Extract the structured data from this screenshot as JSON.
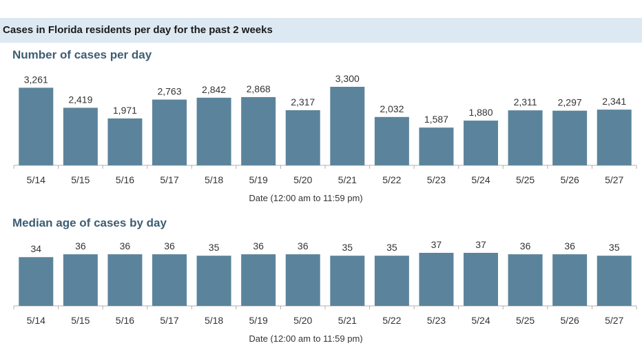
{
  "header": {
    "title": "Cases in Florida residents per day for the past 2 weeks"
  },
  "colors": {
    "bar": "#5b849c",
    "header_band": "#dde9f2",
    "section_title": "#3e5d73",
    "axis": "#b0b0b0",
    "text": "#333333"
  },
  "chart_data": [
    {
      "type": "bar",
      "title": "Number of cases per day",
      "xlabel": "Date (12:00 am to 11:59 pm)",
      "ylabel": "",
      "categories": [
        "5/14",
        "5/15",
        "5/16",
        "5/17",
        "5/18",
        "5/19",
        "5/20",
        "5/21",
        "5/22",
        "5/23",
        "5/24",
        "5/25",
        "5/26",
        "5/27"
      ],
      "values": [
        3261,
        2419,
        1971,
        2763,
        2842,
        2868,
        2317,
        3300,
        2032,
        1587,
        1880,
        2311,
        2297,
        2341
      ],
      "value_labels": [
        "3,261",
        "2,419",
        "1,971",
        "2,763",
        "2,842",
        "2,868",
        "2,317",
        "3,300",
        "2,032",
        "1,587",
        "1,880",
        "2,311",
        "2,297",
        "2,341"
      ],
      "ylim": [
        0,
        3300
      ],
      "grid": false,
      "legend": "none"
    },
    {
      "type": "bar",
      "title": "Median age of cases by day",
      "xlabel": "Date (12:00 am to 11:59 pm)",
      "ylabel": "",
      "categories": [
        "5/14",
        "5/15",
        "5/16",
        "5/17",
        "5/18",
        "5/19",
        "5/20",
        "5/21",
        "5/22",
        "5/23",
        "5/24",
        "5/25",
        "5/26",
        "5/27"
      ],
      "values": [
        34,
        36,
        36,
        36,
        35,
        36,
        36,
        35,
        35,
        37,
        37,
        36,
        36,
        35
      ],
      "value_labels": [
        "34",
        "36",
        "36",
        "36",
        "35",
        "36",
        "36",
        "35",
        "35",
        "37",
        "37",
        "36",
        "36",
        "35"
      ],
      "ylim": [
        0,
        37
      ],
      "grid": false,
      "legend": "none"
    }
  ]
}
